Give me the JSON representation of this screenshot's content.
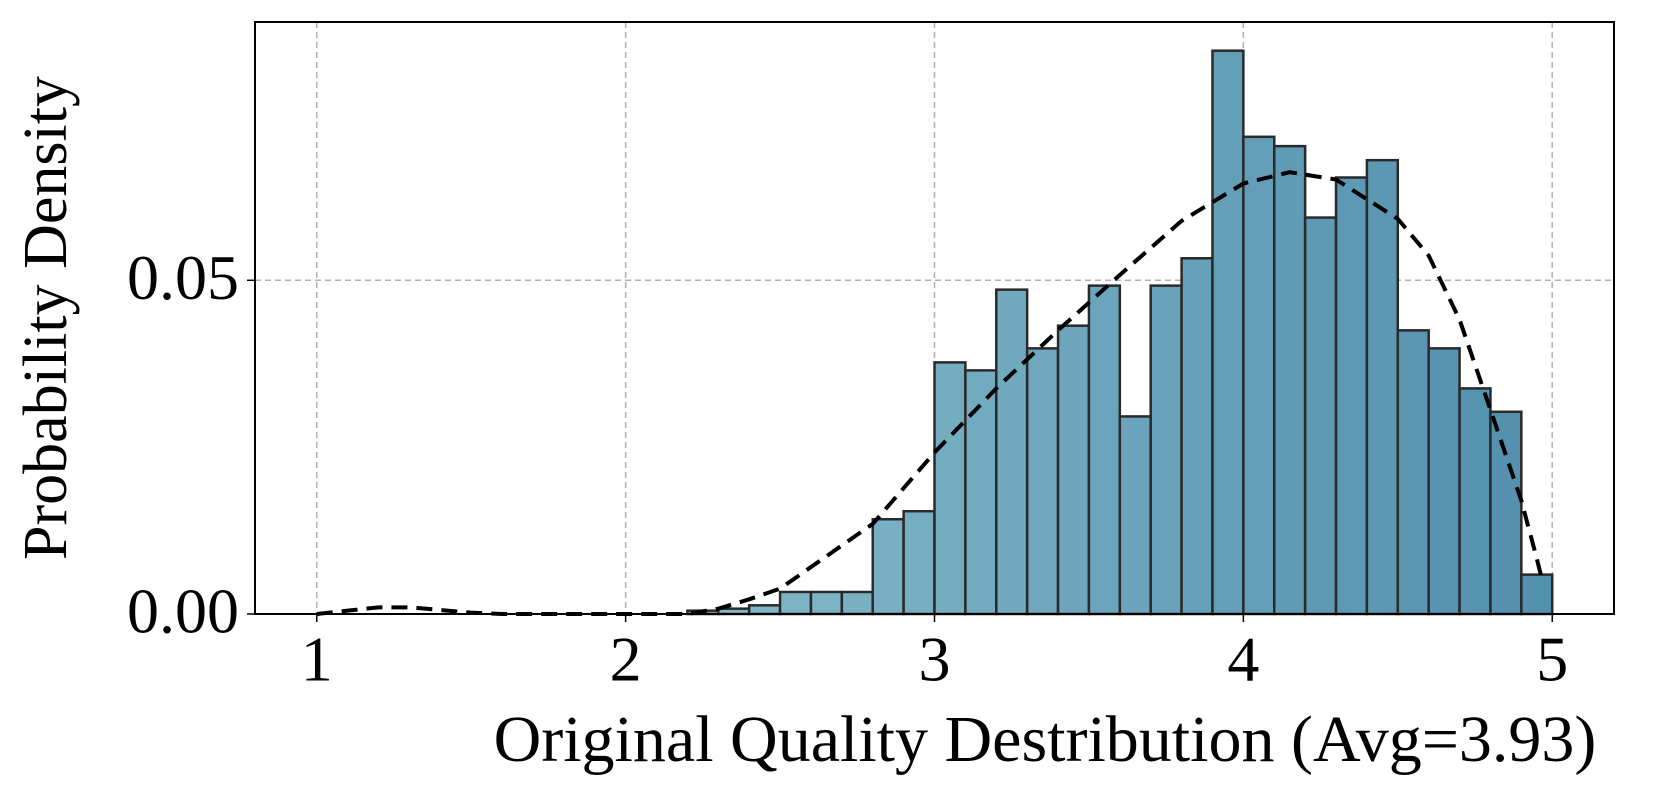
{
  "chart_data": {
    "type": "histogram",
    "xlabel": "Original Quality Destribution (Avg=3.93)",
    "ylabel": "Probability Density",
    "bins": [
      2.2,
      2.3,
      2.4,
      2.5,
      2.6,
      2.7,
      2.8,
      2.9,
      3.0,
      3.1,
      3.2,
      3.3,
      3.4,
      3.5,
      3.6,
      3.7,
      3.8,
      3.9,
      4.0,
      4.1,
      4.2,
      4.3,
      4.4,
      4.5,
      4.6,
      4.7,
      4.8,
      4.9,
      5.0
    ],
    "values": [
      0.0005,
      0.0008,
      0.0013,
      0.0033,
      0.0033,
      0.0033,
      0.0142,
      0.0154,
      0.0377,
      0.0365,
      0.0486,
      0.0398,
      0.0432,
      0.0492,
      0.0296,
      0.0492,
      0.0533,
      0.0844,
      0.0715,
      0.0701,
      0.0594,
      0.0654,
      0.068,
      0.0425,
      0.0398,
      0.0338,
      0.0303,
      0.0059
    ],
    "color_range": [
      "#82b8c8",
      "#5390ae"
    ],
    "edge_color": "#2a2a2a",
    "kde": {
      "x": [
        1.0,
        1.1,
        1.2,
        1.3,
        1.4,
        1.5,
        1.6,
        2.2,
        2.3,
        2.4,
        2.5,
        2.8,
        3.0,
        3.2,
        3.4,
        3.6,
        3.8,
        4.0,
        4.15,
        4.3,
        4.5,
        4.6,
        4.7,
        4.8,
        4.9,
        4.95,
        4.97
      ],
      "y": [
        0,
        0.0005,
        0.001,
        0.001,
        0.0006,
        0.0002,
        0,
        0,
        0.0008,
        0.0022,
        0.0038,
        0.0135,
        0.0242,
        0.0338,
        0.0425,
        0.0508,
        0.0589,
        0.0645,
        0.0662,
        0.0651,
        0.0592,
        0.0537,
        0.0441,
        0.0306,
        0.017,
        0.0083,
        0.0046
      ],
      "color": "#000000",
      "dashed": true
    },
    "xlim": [
      0.8,
      5.2
    ],
    "ylim": [
      0,
      0.0887
    ],
    "xticks": [
      1,
      2,
      3,
      4,
      5
    ],
    "yticks": [
      {
        "value": 0,
        "label": "0.00"
      },
      {
        "value": 0.05,
        "label": "0.05"
      }
    ],
    "grid": true
  }
}
